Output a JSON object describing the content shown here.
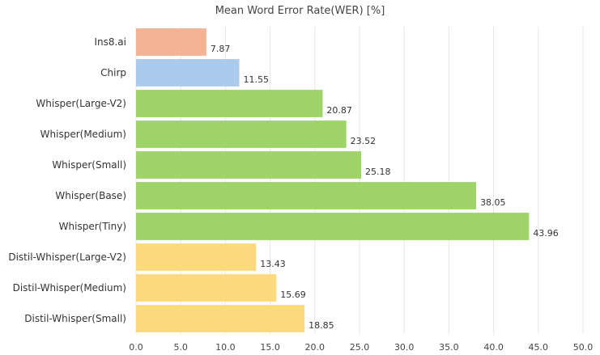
{
  "chart_data": {
    "type": "bar",
    "orientation": "horizontal",
    "title": "Mean Word Error Rate(WER) [%]",
    "xlabel": "",
    "ylabel": "",
    "xlim": [
      0,
      50
    ],
    "xticks": [
      "0.0",
      "5.0",
      "10.0",
      "15.0",
      "20.0",
      "25.0",
      "30.0",
      "35.0",
      "40.0",
      "45.0",
      "50.0"
    ],
    "grid": true,
    "legend": "none",
    "categories": [
      "Ins8.ai",
      "Chirp",
      "Whisper(Large-V2)",
      "Whisper(Medium)",
      "Whisper(Small)",
      "Whisper(Base)",
      "Whisper(Tiny)",
      "Distil-Whisper(Large-V2)",
      "Distil-Whisper(Medium)",
      "Distil-Whisper(Small)"
    ],
    "values": [
      7.87,
      11.55,
      20.87,
      23.52,
      25.18,
      38.05,
      43.96,
      13.43,
      15.69,
      18.85
    ],
    "value_labels": [
      "7.87",
      "11.55",
      "20.87",
      "23.52",
      "25.18",
      "38.05",
      "43.96",
      "13.43",
      "15.69",
      "18.85"
    ],
    "colors": [
      "#f4b494",
      "#aacbec",
      "#9ed46a",
      "#9ed46a",
      "#9ed46a",
      "#9ed46a",
      "#9ed46a",
      "#fcd97d",
      "#fcd97d",
      "#fcd97d"
    ]
  }
}
